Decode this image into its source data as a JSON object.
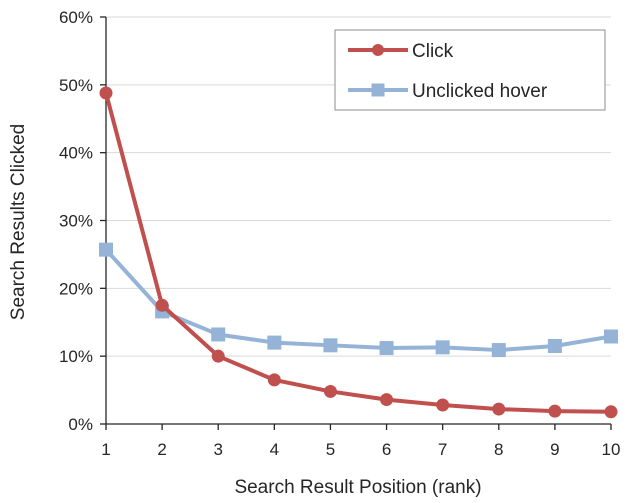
{
  "chart_data": {
    "type": "line",
    "x": [
      1,
      2,
      3,
      4,
      5,
      6,
      7,
      8,
      9,
      10
    ],
    "xlabel": "Search Result Position (rank)",
    "ylabel": "Search Results Clicked",
    "xlim": [
      1,
      10
    ],
    "ylim": [
      0,
      60
    ],
    "y_ticks": [
      "0%",
      "10%",
      "20%",
      "30%",
      "40%",
      "50%",
      "60%"
    ],
    "x_ticks": [
      "1",
      "2",
      "3",
      "4",
      "5",
      "6",
      "7",
      "8",
      "9",
      "10"
    ],
    "grid": "horizontal",
    "legend_position": "top-right",
    "series": [
      {
        "name": "Click",
        "marker": "circle",
        "color": "#c0504d",
        "values": [
          48.8,
          17.5,
          10.0,
          6.5,
          4.8,
          3.6,
          2.8,
          2.2,
          1.9,
          1.8
        ]
      },
      {
        "name": "Unclicked hover",
        "marker": "square",
        "color": "#95b3d7",
        "values": [
          25.7,
          16.6,
          13.2,
          12.0,
          11.6,
          11.2,
          11.3,
          10.9,
          11.5,
          12.9
        ]
      }
    ]
  }
}
